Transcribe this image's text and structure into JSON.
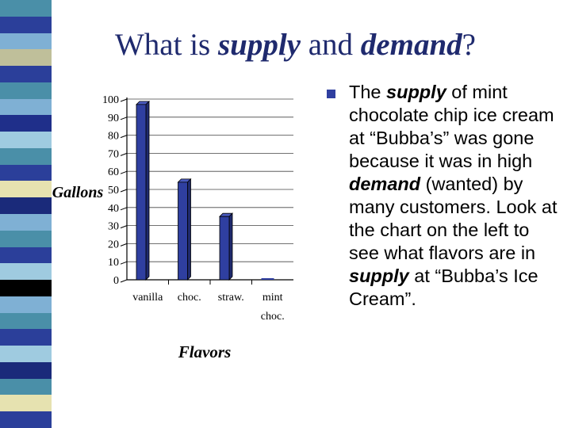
{
  "title": {
    "pre": "What is ",
    "em1": "supply",
    "mid": " and ",
    "em2": "demand",
    "post": "?"
  },
  "colors": {
    "title": "#1f2a6e",
    "bar": "#2f3fa0",
    "bar_top": "#4a5bc0",
    "stripe": [
      "#4a8fa8",
      "#2b3f9a",
      "#7fb0d4",
      "#bfbf9a",
      "#2b3f9a",
      "#4a8fa8",
      "#7fb0d4",
      "#1f2f8a",
      "#9fcbe0",
      "#4a8fa8",
      "#2b3f9a",
      "#e6e2b0",
      "#1a2a7a",
      "#7fb0d4",
      "#4a8fa8",
      "#2b3f9a",
      "#9fcbe0",
      "#000000",
      "#7fb0d4",
      "#4a8fa8",
      "#2b3f9a",
      "#9fcbe0",
      "#1a2a7a",
      "#4a8fa8",
      "#e6e2b0",
      "#2b3f9a"
    ]
  },
  "chart_data": {
    "type": "bar",
    "categories": [
      "vanilla",
      "choc.",
      "straw.",
      "mint choc."
    ],
    "values": [
      97,
      54,
      35,
      0
    ],
    "xlabel": "Flavors",
    "ylabel": "Gallons",
    "ylim": [
      0,
      100
    ],
    "yticks": [
      0,
      10,
      20,
      30,
      40,
      50,
      60,
      70,
      80,
      90,
      100
    ],
    "grid": true
  },
  "bullet_text": {
    "p1": "The ",
    "s1": "supply",
    "p2": " of mint chocolate chip ice cream at “Bubba’s” was gone because it was in high ",
    "s2": "demand",
    "p3": " (wanted) by many customers.  Look at the chart on the left to see what flavors are in ",
    "s3": "supply",
    "p4": " at “Bubba’s Ice Cream”."
  }
}
